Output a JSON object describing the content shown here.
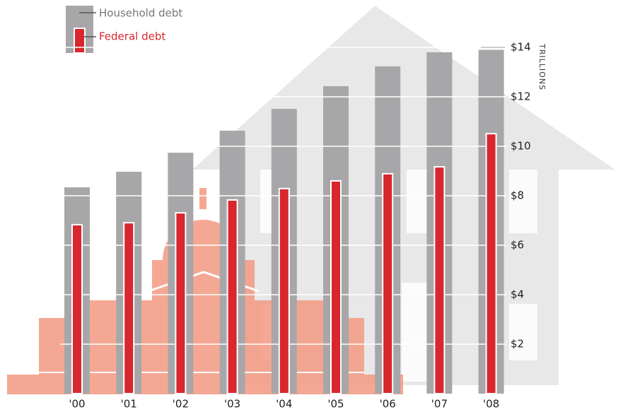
{
  "chart_data": {
    "type": "bar",
    "categories": [
      "'00",
      "'01",
      "'02",
      "'03",
      "'04",
      "'05",
      "'06",
      "'07",
      "'08"
    ],
    "series": [
      {
        "name": "Household debt",
        "color": "#a7a7a9",
        "values": [
          8.34,
          8.97,
          9.74,
          10.63,
          11.51,
          12.43,
          13.23,
          13.8,
          13.9
        ]
      },
      {
        "name": "Federal debt",
        "color": "#d9272e",
        "values": [
          6.83,
          6.91,
          7.31,
          7.83,
          8.29,
          8.6,
          8.89,
          9.17,
          10.51
        ]
      }
    ],
    "y_axis_label": "TRILLIONS",
    "ylim": [
      0,
      14
    ],
    "yticks": [
      {
        "value": 2,
        "label": "$2"
      },
      {
        "value": 4,
        "label": "$4"
      },
      {
        "value": 6,
        "label": "$6"
      },
      {
        "value": 8,
        "label": "$8"
      },
      {
        "value": 10,
        "label": "$10"
      },
      {
        "value": 12,
        "label": "$12"
      },
      {
        "value": 14,
        "label": "$14"
      }
    ],
    "grid": true,
    "legend": "top-left"
  }
}
